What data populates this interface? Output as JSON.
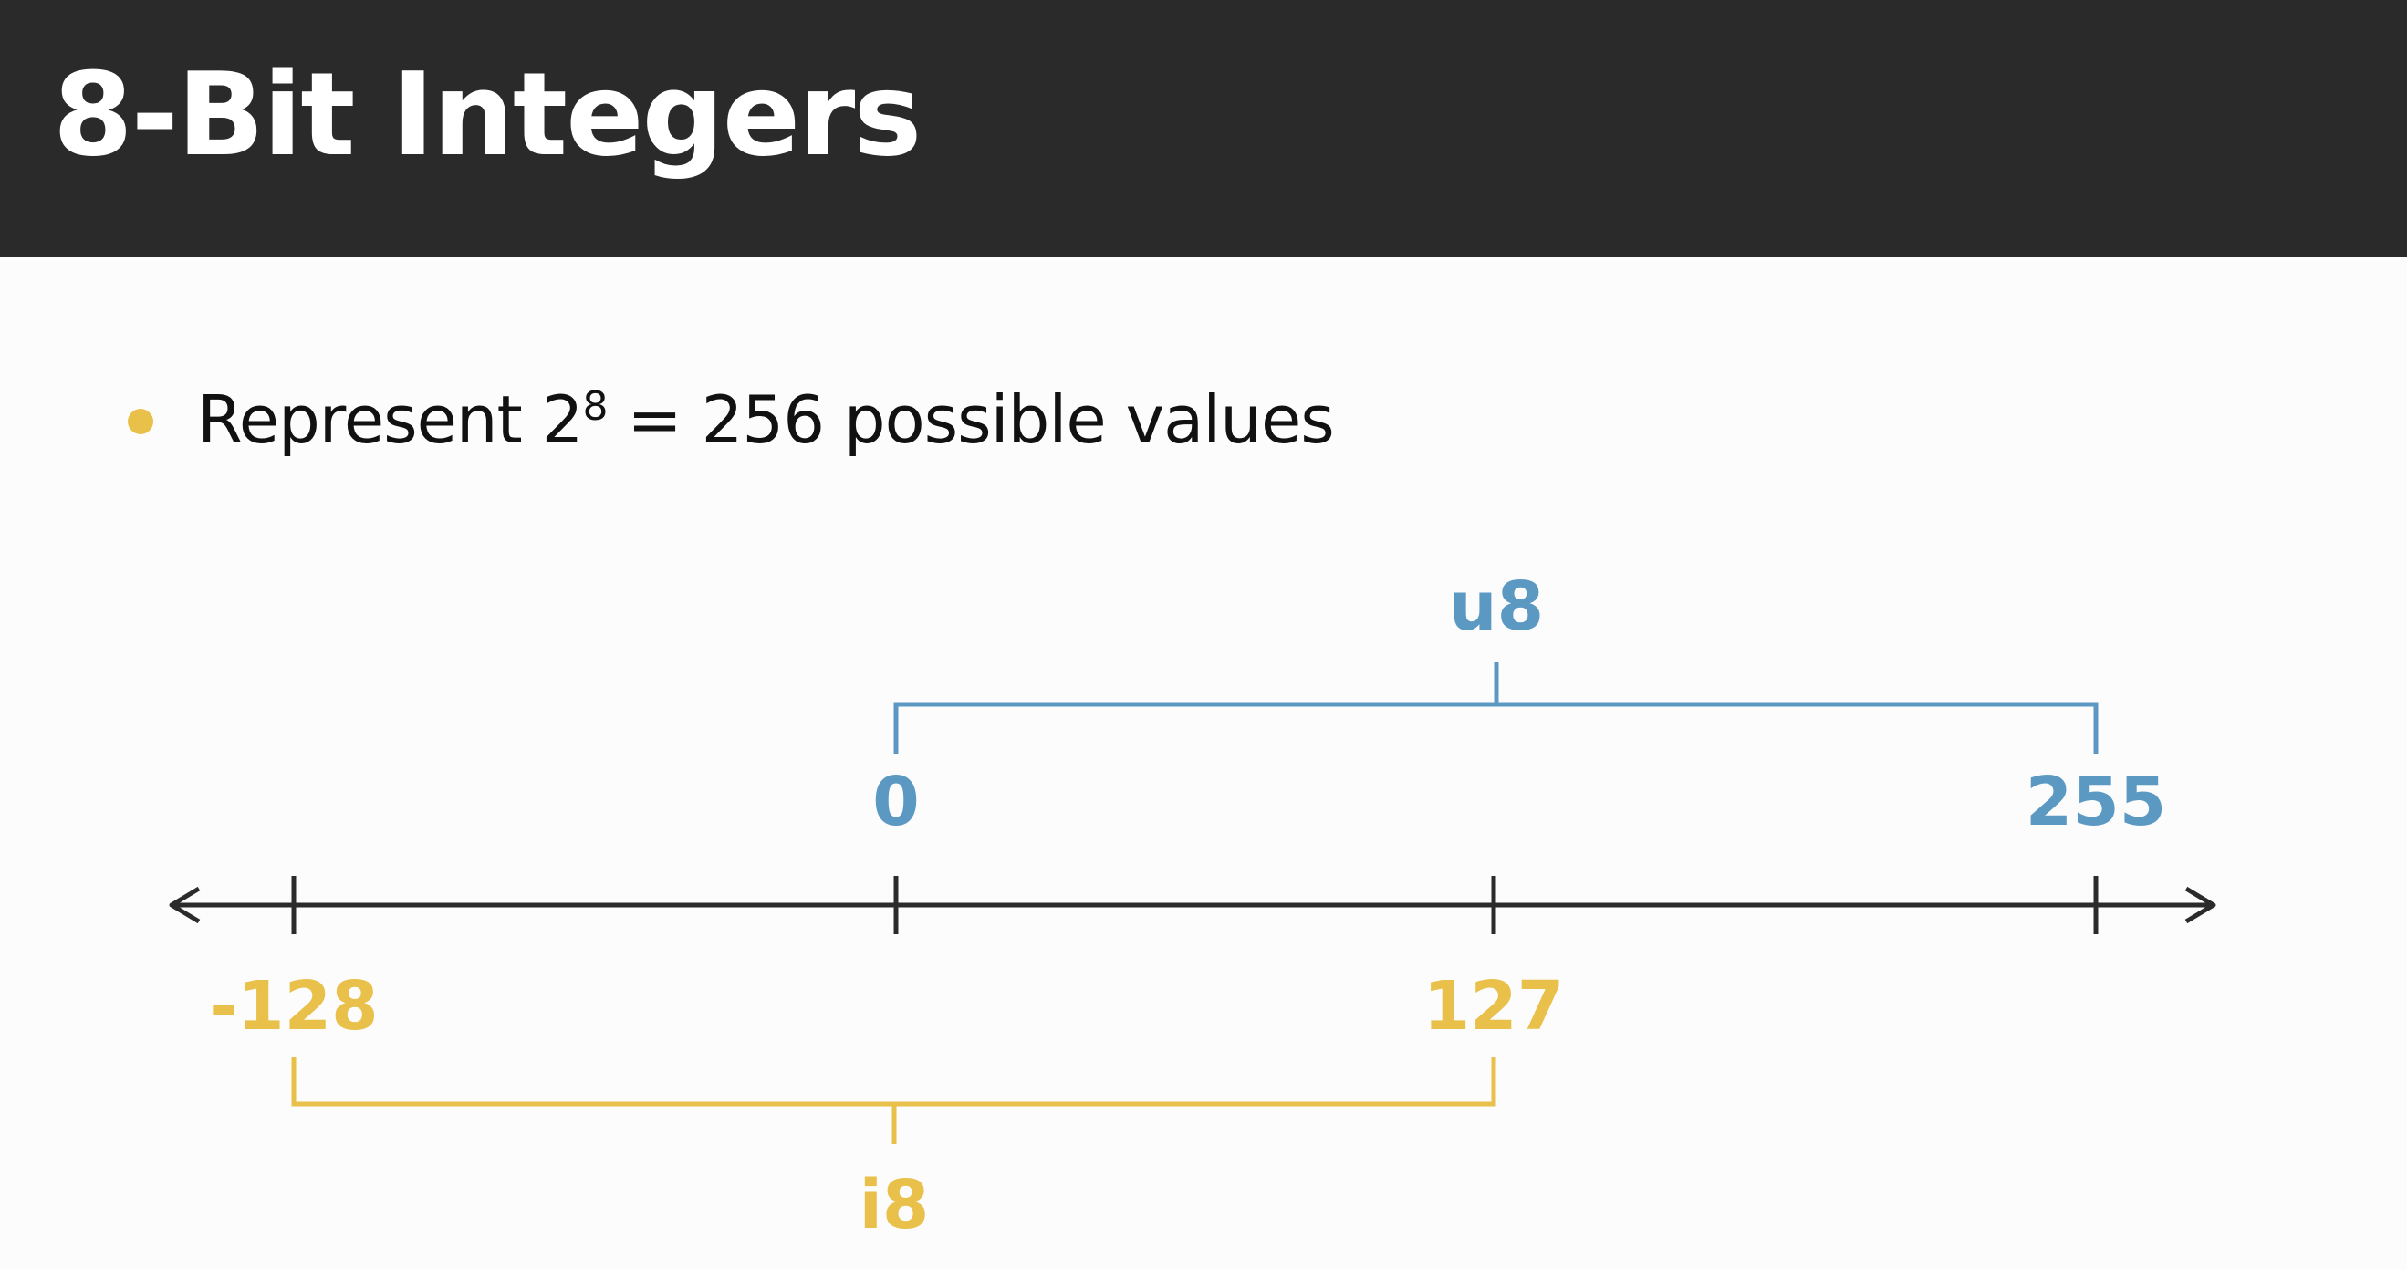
{
  "slide": {
    "title": "8-Bit Integers",
    "bullet": {
      "prefix": "Represent 2",
      "superscript": "8",
      "suffix": " = 256 possible values"
    }
  },
  "colors": {
    "title_bar": "#2a2a2a",
    "title_text": "#ffffff",
    "bullet_dot": "#e8c04a",
    "unsigned": "#5b99c3",
    "signed": "#e8c04a",
    "axis": "#2b2b2b"
  },
  "diagram": {
    "unsigned": {
      "name": "u8",
      "min_label": "0",
      "max_label": "255",
      "min": 0,
      "max": 255
    },
    "signed": {
      "name": "i8",
      "min_label": "-128",
      "max_label": "127",
      "min": -128,
      "max": 127
    },
    "ticks": [
      -128,
      0,
      127,
      255
    ]
  }
}
